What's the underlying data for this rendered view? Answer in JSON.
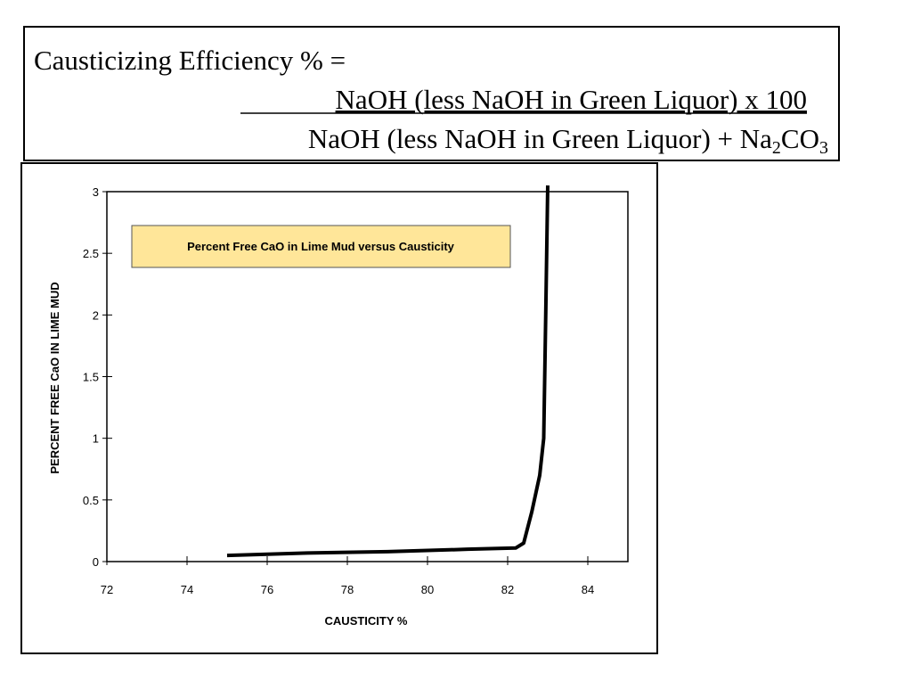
{
  "formula": {
    "title": "Causticizing Efficiency % =",
    "numerator": "NaOH (less NaOH in Green Liquor) x 100",
    "denominator": [
      "NaOH (less NaOH in Green Liquor) + Na",
      "2",
      "CO",
      "3"
    ]
  },
  "chart_data": {
    "type": "line",
    "annotation": "Percent Free CaO in Lime Mud versus Causticity",
    "x_label": "CAUSTICITY %",
    "y_label": "PERCENT FREE CaO IN LIME MUD",
    "x": [
      75,
      77,
      79,
      81,
      82.2,
      82.4,
      82.6,
      82.8,
      82.9,
      82.95,
      83.0
    ],
    "series": [
      {
        "color": "#000000",
        "values": [
          0.05,
          0.07,
          0.08,
          0.1,
          0.11,
          0.15,
          0.4,
          0.7,
          1.0,
          2.0,
          3.05
        ]
      }
    ],
    "xlim": [
      72,
      85
    ],
    "xticks": [
      72,
      74,
      76,
      78,
      80,
      82,
      84
    ],
    "ylim": [
      0,
      3
    ],
    "yticks": [
      0,
      0.5,
      1,
      1.5,
      2,
      2.5,
      3
    ]
  }
}
